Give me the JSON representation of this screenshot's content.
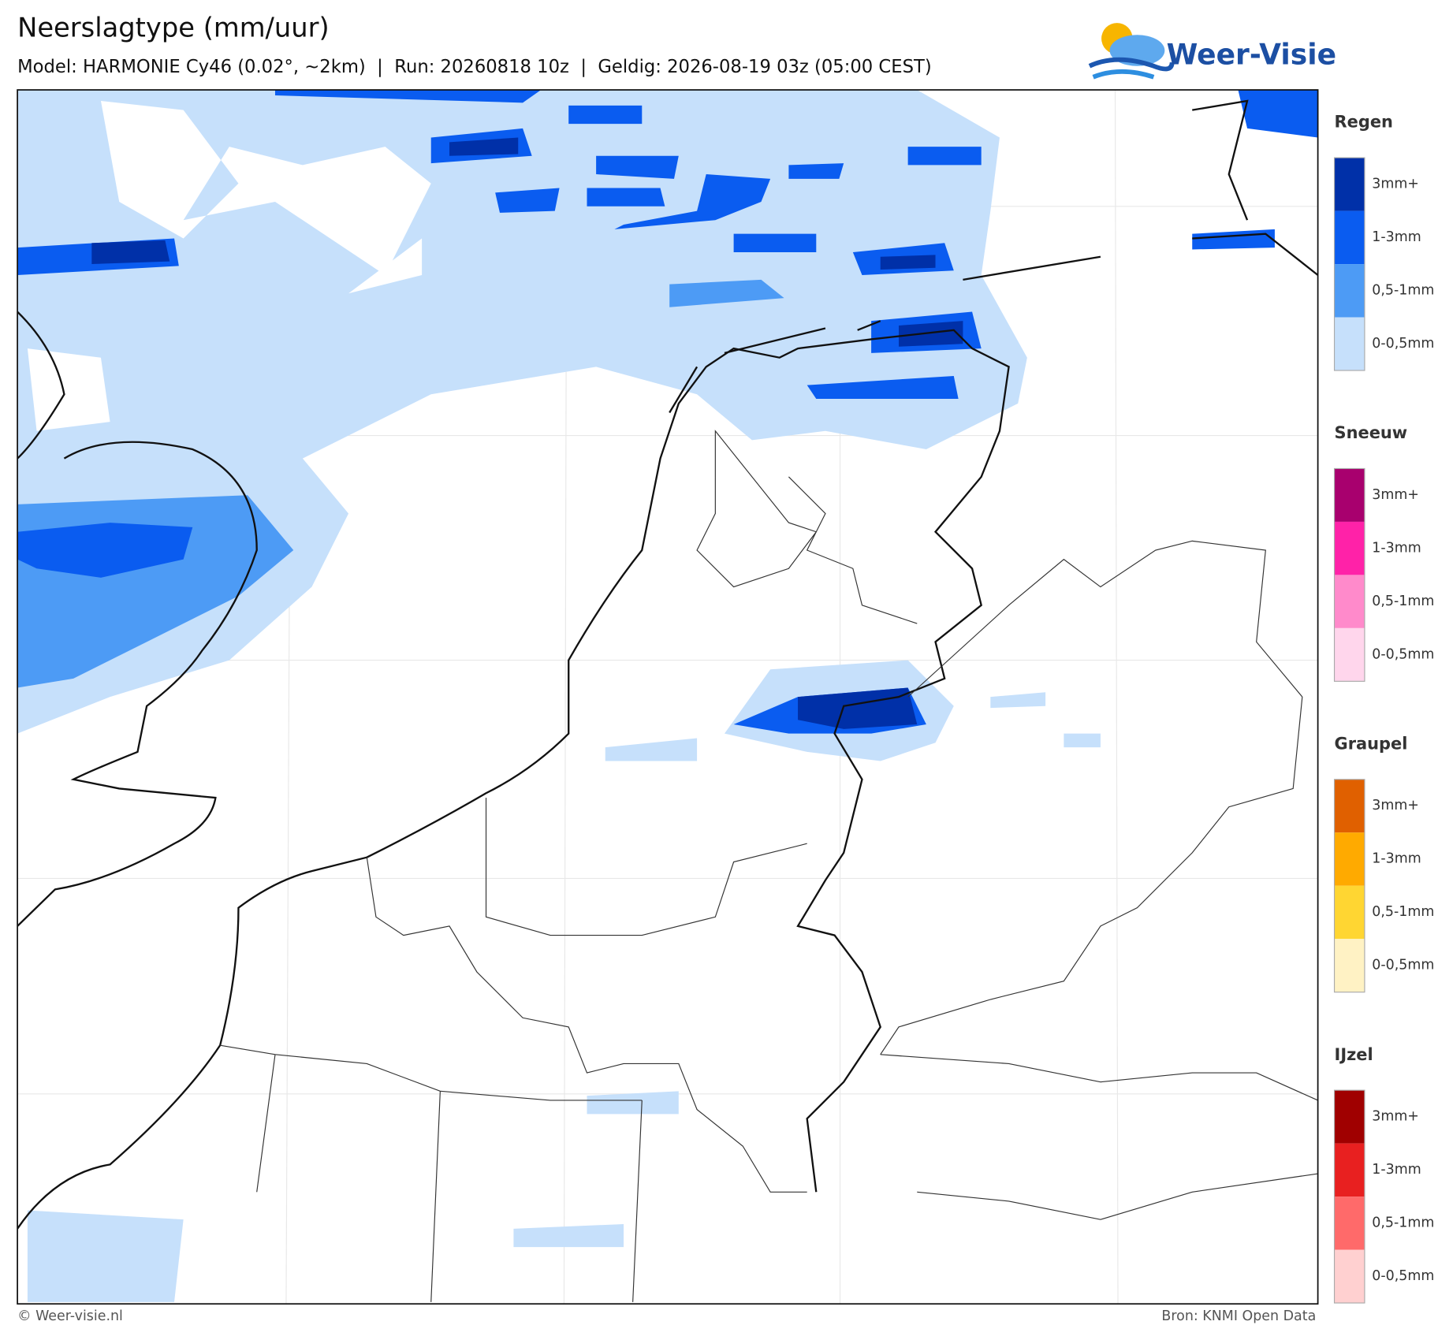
{
  "header": {
    "title": "Neerslagtype (mm/uur)",
    "subtitle": "Model: HARMONIE Cy46 (0.02°, ~2km)  |  Run: 20260818 10z  |  Geldig: 2026-08-19 03z (05:00 CEST)"
  },
  "logo": {
    "text": "Weer-Visie"
  },
  "legend": [
    {
      "title": "Regen",
      "items": [
        {
          "label": "3mm+",
          "color": "#0030a8"
        },
        {
          "label": "1-3mm",
          "color": "#0a5cf0"
        },
        {
          "label": "0,5-1mm",
          "color": "#4d9bf5"
        },
        {
          "label": "0-0,5mm",
          "color": "#c6e0fb"
        }
      ]
    },
    {
      "title": "Sneeuw",
      "items": [
        {
          "label": "3mm+",
          "color": "#a8006e"
        },
        {
          "label": "1-3mm",
          "color": "#ff22a8"
        },
        {
          "label": "0,5-1mm",
          "color": "#ff8acb"
        },
        {
          "label": "0-0,5mm",
          "color": "#ffd6ec"
        }
      ]
    },
    {
      "title": "Graupel",
      "items": [
        {
          "label": "3mm+",
          "color": "#e06000"
        },
        {
          "label": "1-3mm",
          "color": "#ffaa00"
        },
        {
          "label": "0,5-1mm",
          "color": "#ffd632"
        },
        {
          "label": "0-0,5mm",
          "color": "#fff2c4"
        }
      ]
    },
    {
      "title": "IJzel",
      "items": [
        {
          "label": "3mm+",
          "color": "#a00000"
        },
        {
          "label": "1-3mm",
          "color": "#e82020"
        },
        {
          "label": "0,5-1mm",
          "color": "#ff6a6a"
        },
        {
          "label": "0-0,5mm",
          "color": "#ffd0d0"
        }
      ]
    }
  ],
  "footer": {
    "left": "© Weer-visie.nl",
    "right": "Bron: KNMI Open Data"
  }
}
